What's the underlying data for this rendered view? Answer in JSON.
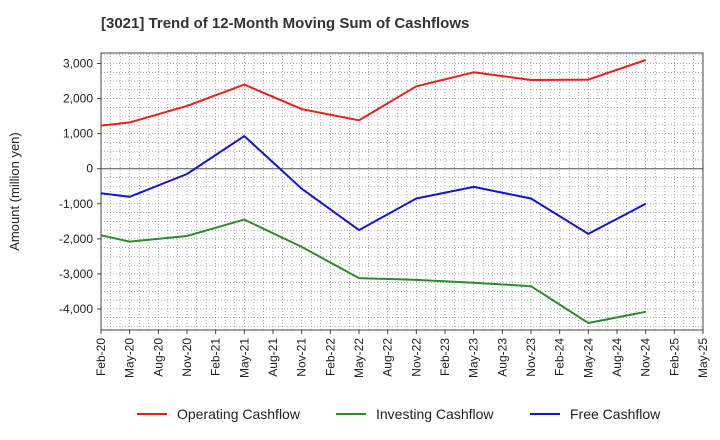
{
  "chart_data": {
    "type": "line",
    "title": "[3021]  Trend of 12-Month Moving Sum of Cashflows",
    "xlabel": "",
    "ylabel": "Amount (million yen)",
    "categories": [
      "Feb-20",
      "May-20",
      "Aug-20",
      "Nov-20",
      "Feb-21",
      "May-21",
      "Aug-21",
      "Nov-21",
      "Feb-22",
      "May-22",
      "Aug-22",
      "Nov-22",
      "Feb-23",
      "May-23",
      "Aug-23",
      "Nov-23",
      "Feb-24",
      "May-24",
      "Aug-24",
      "Nov-24",
      "Feb-25",
      "May-25"
    ],
    "ylim": [
      -4600,
      3300
    ],
    "yticks": [
      3000,
      2000,
      1000,
      0,
      -1000,
      -2000,
      -3000,
      -4000
    ],
    "ytick_labels": [
      "3,000",
      "2,000",
      "1,000",
      "0",
      "-1,000",
      "-2,000",
      "-3,000",
      "-4,000"
    ],
    "grid": true,
    "legend_position": "bottom",
    "series": [
      {
        "name": "Operating Cashflow",
        "color": "#e8201c",
        "values": [
          1230,
          1320,
          null,
          1790,
          null,
          2400,
          null,
          1700,
          null,
          1380,
          null,
          2350,
          null,
          2750,
          null,
          2530,
          null,
          2540,
          null,
          3100,
          null,
          null
        ]
      },
      {
        "name": "Investing Cashflow",
        "color": "#2e8b2e",
        "values": [
          -1900,
          -2080,
          null,
          -1920,
          null,
          -1450,
          null,
          -2230,
          null,
          -3120,
          null,
          -3170,
          null,
          -3250,
          null,
          -3350,
          null,
          -4400,
          null,
          -4080,
          null,
          null
        ]
      },
      {
        "name": "Free Cashflow",
        "color": "#1515d0",
        "values": [
          -700,
          -800,
          null,
          -150,
          null,
          930,
          null,
          -570,
          null,
          -1750,
          null,
          -850,
          null,
          -520,
          null,
          -850,
          null,
          -1860,
          null,
          -1000,
          null,
          null
        ]
      }
    ]
  }
}
